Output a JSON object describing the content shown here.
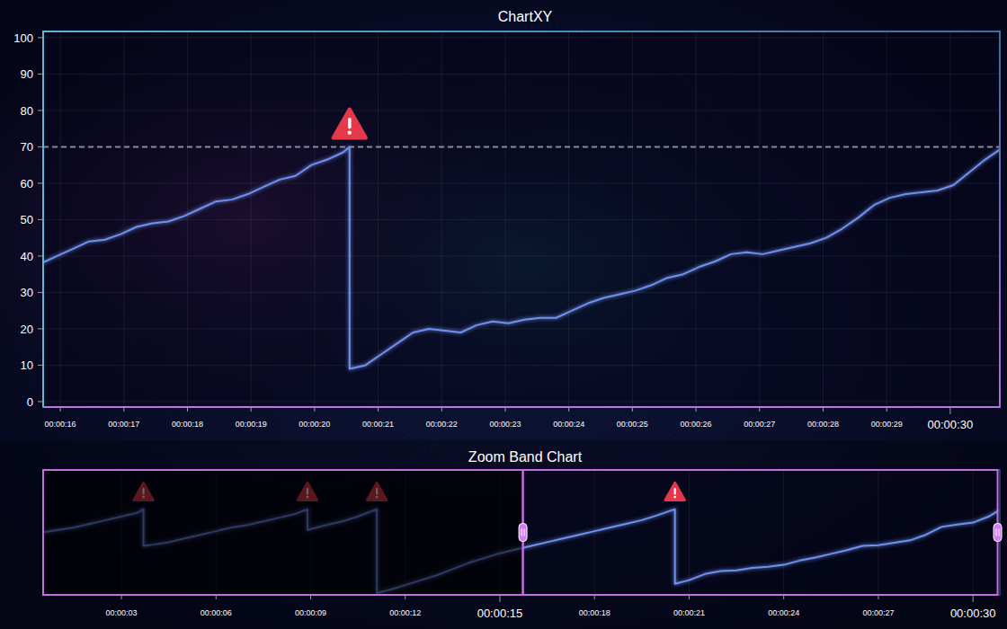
{
  "chart_data": [
    {
      "type": "line",
      "title": "ChartXY",
      "color": "#6f90ee",
      "grid": true,
      "xlim": [
        15.73,
        30.78
      ],
      "ylim": [
        -1.5,
        101.7
      ],
      "xticks": [
        {
          "value": 16,
          "label": "00:00:16"
        },
        {
          "value": 17,
          "label": "00:00:17"
        },
        {
          "value": 18,
          "label": "00:00:18"
        },
        {
          "value": 19,
          "label": "00:00:19"
        },
        {
          "value": 20,
          "label": "00:00:20"
        },
        {
          "value": 21,
          "label": "00:00:21"
        },
        {
          "value": 22,
          "label": "00:00:22"
        },
        {
          "value": 23,
          "label": "00:00:23"
        },
        {
          "value": 24,
          "label": "00:00:24"
        },
        {
          "value": 25,
          "label": "00:00:25"
        },
        {
          "value": 26,
          "label": "00:00:26"
        },
        {
          "value": 27,
          "label": "00:00:27"
        },
        {
          "value": 28,
          "label": "00:00:28"
        },
        {
          "value": 29,
          "label": "00:00:29"
        },
        {
          "value": 30,
          "label": "00:00:30"
        }
      ],
      "yticks": [
        0,
        10,
        20,
        30,
        40,
        50,
        60,
        70,
        80,
        90,
        100
      ],
      "threshold": 70,
      "alerts": [
        {
          "x": 20.55,
          "y": 70
        }
      ],
      "x": [
        15.7,
        15.95,
        16.2,
        16.45,
        16.7,
        16.95,
        17.2,
        17.45,
        17.7,
        17.95,
        18.2,
        18.45,
        18.7,
        18.95,
        19.2,
        19.45,
        19.7,
        19.95,
        20.2,
        20.45,
        20.55,
        20.55,
        20.8,
        21.05,
        21.3,
        21.55,
        21.8,
        22.05,
        22.3,
        22.55,
        22.8,
        23.05,
        23.3,
        23.55,
        23.8,
        24.05,
        24.3,
        24.55,
        24.8,
        25.05,
        25.3,
        25.55,
        25.8,
        26.05,
        26.3,
        26.55,
        26.8,
        27.05,
        27.3,
        27.55,
        27.8,
        28.05,
        28.3,
        28.55,
        28.8,
        29.05,
        29.3,
        29.55,
        29.8,
        30.05,
        30.3,
        30.55,
        30.8
      ],
      "values": [
        38,
        40,
        42,
        44,
        44.5,
        46,
        48,
        49,
        49.5,
        51,
        53,
        55,
        55.5,
        57,
        59,
        61,
        62,
        65,
        66.5,
        68.5,
        70,
        9,
        10,
        13,
        16,
        19,
        20,
        19.5,
        19,
        21,
        22,
        21.5,
        22.5,
        23,
        23,
        25,
        27,
        28.5,
        29.5,
        30.5,
        32,
        34,
        35,
        37,
        38.5,
        40.5,
        41,
        40.5,
        41.5,
        42.5,
        43.5,
        45,
        47.5,
        50.5,
        54,
        56,
        57,
        57.5,
        58,
        59.5,
        63,
        66.5,
        69.5
      ]
    },
    {
      "type": "line",
      "title": "Zoom Band Chart",
      "color": "#6f90ee",
      "grid": true,
      "tick_labels": "x",
      "xlim": [
        0.52,
        30.85
      ],
      "ylim": [
        0,
        102
      ],
      "xticks": [
        {
          "value": 3,
          "label": "00:00:03"
        },
        {
          "value": 6,
          "label": "00:00:06"
        },
        {
          "value": 9,
          "label": "00:00:09"
        },
        {
          "value": 12,
          "label": "00:00:12"
        },
        {
          "value": 15,
          "label": "00:00:15"
        },
        {
          "value": 18,
          "label": "00:00:18"
        },
        {
          "value": 21,
          "label": "00:00:21"
        },
        {
          "value": 24,
          "label": "00:00:24"
        },
        {
          "value": 27,
          "label": "00:00:27"
        },
        {
          "value": 30,
          "label": "00:00:30"
        }
      ],
      "zoom_range": [
        15.73,
        30.78
      ],
      "alerts": [
        {
          "x": 3.7,
          "y": 70
        },
        {
          "x": 8.9,
          "y": 70
        },
        {
          "x": 11.1,
          "y": 70
        },
        {
          "x": 20.55,
          "y": 70
        }
      ],
      "x": [
        0.5,
        1,
        1.5,
        2,
        2.5,
        3,
        3.5,
        3.7,
        3.7,
        4,
        4.5,
        5,
        5.5,
        6,
        6.5,
        7,
        7.5,
        8,
        8.5,
        8.9,
        8.9,
        9.5,
        10,
        10.5,
        11.1,
        11.1,
        11.5,
        12,
        12.5,
        13,
        13.5,
        14,
        14.5,
        15,
        15.5,
        16,
        16.5,
        17,
        17.5,
        18,
        18.5,
        19,
        19.5,
        20,
        20.55,
        20.55,
        21,
        21.5,
        22,
        22.5,
        23,
        23.5,
        24,
        24.5,
        25,
        25.5,
        26,
        26.5,
        27,
        27.5,
        28,
        28.5,
        29,
        29.5,
        30,
        30.5,
        30.85
      ],
      "values": [
        51,
        53,
        55,
        58,
        61,
        64,
        67,
        70,
        40,
        41,
        43,
        46,
        49,
        52,
        55,
        57,
        60,
        63,
        66,
        70,
        53,
        57,
        60,
        64,
        70,
        1.5,
        4,
        8,
        12,
        16,
        21,
        26,
        30,
        34,
        37,
        40,
        43,
        46,
        49,
        52,
        55,
        58,
        61,
        65,
        70,
        9,
        12,
        17,
        19.5,
        20,
        22,
        23,
        24.5,
        28,
        30.5,
        33.5,
        36.5,
        40,
        40.5,
        42.5,
        44.5,
        49,
        55.5,
        57.5,
        59,
        64,
        69.5
      ]
    }
  ]
}
